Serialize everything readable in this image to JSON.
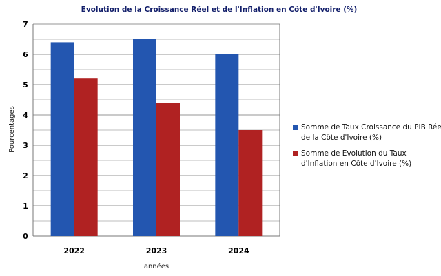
{
  "chart_data": {
    "type": "bar",
    "title": "Evolution de la Croissance  Réel et de l'Inflation en Côte d'Ivoire (%)",
    "xlabel": "années",
    "ylabel": "Pourcentages",
    "categories": [
      "2022",
      "2023",
      "2024"
    ],
    "ylim": [
      0,
      7
    ],
    "yticks": [
      0,
      1,
      2,
      3,
      4,
      5,
      6,
      7
    ],
    "grid": "horizontal",
    "legend_position": "right",
    "series": [
      {
        "name": "Somme de Taux Croissance  du PIB Réel de la Côte d'Ivoire (%)",
        "legend_lines": [
          "Somme de Taux Croissance  du PIB Réel",
          "de la Côte d'Ivoire (%)"
        ],
        "color": "#2356b0",
        "values": [
          6.4,
          6.5,
          6.0
        ]
      },
      {
        "name": "Somme de Evolution du Taux d'Inflation en Côte d'Ivoire (%)",
        "legend_lines": [
          "Somme de Evolution du Taux",
          "d'Inflation en Côte d'Ivoire (%)"
        ],
        "color": "#b02222",
        "values": [
          5.2,
          4.4,
          3.5
        ]
      }
    ]
  }
}
